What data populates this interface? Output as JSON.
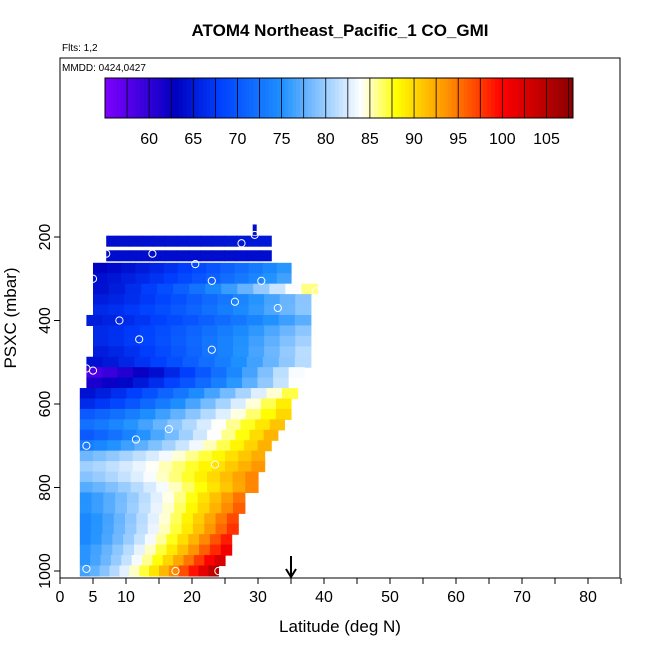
{
  "chart_data": {
    "type": "heatmap",
    "title": "ATOM4 Northeast_Pacific_1 CO_GMI",
    "annotations": [
      "Flts: 1,2",
      "MMDD: 0424,0427"
    ],
    "xlabel": "Latitude (deg N)",
    "ylabel": "PSXC (mbar)",
    "xlim": [
      0,
      85
    ],
    "ylim": [
      1010,
      0
    ],
    "x_ticks": [
      0,
      5,
      10,
      20,
      30,
      40,
      50,
      60,
      70,
      80
    ],
    "y_ticks": [
      200,
      400,
      600,
      800,
      1000
    ],
    "colorbar": {
      "min": 55,
      "max": 108,
      "ticks": [
        60,
        65,
        70,
        75,
        80,
        85,
        90,
        95,
        100,
        105
      ],
      "colors": [
        "#8000ff",
        "#0000c0",
        "#0040ff",
        "#1e90ff",
        "#ffffff",
        "#ffff00",
        "#ff8c00",
        "#ff0000",
        "#8b0000"
      ]
    },
    "bands": [
      {
        "p": 210,
        "lat0": 7,
        "lat1": 32,
        "v0": 64,
        "v1": 65
      },
      {
        "p": 245,
        "lat0": 7,
        "lat1": 32,
        "v0": 64,
        "v1": 64
      },
      {
        "p": 275,
        "lat0": 5,
        "lat1": 35,
        "v0": 63,
        "v1": 76
      },
      {
        "p": 300,
        "lat0": 5,
        "lat1": 35,
        "v0": 64,
        "v1": 77
      },
      {
        "p": 325,
        "lat0": 5,
        "lat1": 39,
        "v0": 64,
        "v1": 87
      },
      {
        "p": 350,
        "lat0": 5,
        "lat1": 38,
        "v0": 65,
        "v1": 80
      },
      {
        "p": 375,
        "lat0": 5,
        "lat1": 38,
        "v0": 66,
        "v1": 80
      },
      {
        "p": 400,
        "lat0": 4,
        "lat1": 38,
        "v0": 65,
        "v1": 78
      },
      {
        "p": 425,
        "lat0": 5,
        "lat1": 38,
        "v0": 66,
        "v1": 80
      },
      {
        "p": 450,
        "lat0": 5,
        "lat1": 38,
        "v0": 66,
        "v1": 81
      },
      {
        "p": 475,
        "lat0": 5,
        "lat1": 38,
        "v0": 65,
        "v1": 82
      },
      {
        "p": 500,
        "lat0": 4,
        "lat1": 38,
        "v0": 64,
        "v1": 82
      },
      {
        "p": 525,
        "lat0": 4,
        "lat1": 37,
        "v0": 58,
        "v1": 85
      },
      {
        "p": 550,
        "lat0": 4,
        "lat1": 37,
        "v0": 61,
        "v1": 85
      },
      {
        "p": 575,
        "lat0": 3,
        "lat1": 36,
        "v0": 64,
        "v1": 88
      },
      {
        "p": 600,
        "lat0": 3,
        "lat1": 35,
        "v0": 66,
        "v1": 90
      },
      {
        "p": 625,
        "lat0": 3,
        "lat1": 35,
        "v0": 70,
        "v1": 91
      },
      {
        "p": 650,
        "lat0": 3,
        "lat1": 34,
        "v0": 72,
        "v1": 92
      },
      {
        "p": 675,
        "lat0": 3,
        "lat1": 33,
        "v0": 70,
        "v1": 93
      },
      {
        "p": 700,
        "lat0": 3,
        "lat1": 32,
        "v0": 73,
        "v1": 93
      },
      {
        "p": 725,
        "lat0": 3,
        "lat1": 31,
        "v0": 78,
        "v1": 93
      },
      {
        "p": 750,
        "lat0": 3,
        "lat1": 31,
        "v0": 80,
        "v1": 94
      },
      {
        "p": 775,
        "lat0": 3,
        "lat1": 30,
        "v0": 79,
        "v1": 95
      },
      {
        "p": 800,
        "lat0": 3,
        "lat1": 30,
        "v0": 77,
        "v1": 95
      },
      {
        "p": 825,
        "lat0": 3,
        "lat1": 28,
        "v0": 75,
        "v1": 96
      },
      {
        "p": 850,
        "lat0": 3,
        "lat1": 28,
        "v0": 75,
        "v1": 97
      },
      {
        "p": 875,
        "lat0": 3,
        "lat1": 27,
        "v0": 74,
        "v1": 98
      },
      {
        "p": 900,
        "lat0": 3,
        "lat1": 27,
        "v0": 74,
        "v1": 99
      },
      {
        "p": 925,
        "lat0": 3,
        "lat1": 26,
        "v0": 74,
        "v1": 100
      },
      {
        "p": 950,
        "lat0": 3,
        "lat1": 26,
        "v0": 75,
        "v1": 102
      },
      {
        "p": 975,
        "lat0": 3,
        "lat1": 25,
        "v0": 75,
        "v1": 104
      },
      {
        "p": 1000,
        "lat0": 3,
        "lat1": 24,
        "v0": 76,
        "v1": 106
      }
    ],
    "markers": [
      {
        "lat": 29.5,
        "p": 195
      },
      {
        "lat": 27.5,
        "p": 215
      },
      {
        "lat": 7,
        "p": 240
      },
      {
        "lat": 14,
        "p": 240
      },
      {
        "lat": 20.5,
        "p": 265
      },
      {
        "lat": 5,
        "p": 300
      },
      {
        "lat": 23,
        "p": 305
      },
      {
        "lat": 30.5,
        "p": 305
      },
      {
        "lat": 38.8,
        "p": 330
      },
      {
        "lat": 26.5,
        "p": 355
      },
      {
        "lat": 33,
        "p": 370
      },
      {
        "lat": 9,
        "p": 400
      },
      {
        "lat": 12,
        "p": 445
      },
      {
        "lat": 23,
        "p": 470
      },
      {
        "lat": 4,
        "p": 515
      },
      {
        "lat": 5,
        "p": 520
      },
      {
        "lat": 16.5,
        "p": 660
      },
      {
        "lat": 11.5,
        "p": 685
      },
      {
        "lat": 4,
        "p": 700
      },
      {
        "lat": 23.5,
        "p": 745
      },
      {
        "lat": 4,
        "p": 995
      },
      {
        "lat": 17.5,
        "p": 1000
      },
      {
        "lat": 24,
        "p": 1000
      }
    ],
    "top_strip": {
      "lat": 29.5,
      "p0": 170,
      "p1": 195
    },
    "arrow_lat": 35
  }
}
